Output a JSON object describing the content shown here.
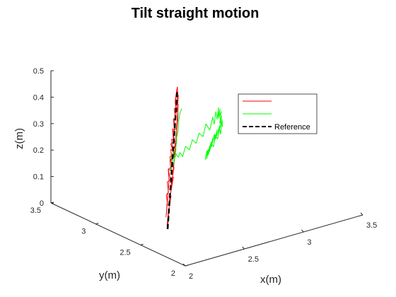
{
  "chart_data": {
    "type": "line",
    "projection": "3d",
    "title": "Tilt straight motion",
    "xlabel": "x(m)",
    "ylabel": "y(m)",
    "zlabel": "z(m)",
    "xlim": [
      2,
      3.5
    ],
    "ylim": [
      2,
      3.5
    ],
    "zlim": [
      0,
      0.5
    ],
    "x_ticks": [
      "2",
      "2.5",
      "3",
      "3.5"
    ],
    "y_ticks": [
      "2",
      "2.5",
      "3",
      "3.5"
    ],
    "z_ticks": [
      "0",
      "0.1",
      "0.2",
      "0.3",
      "0.4",
      "0.5"
    ],
    "grid": false,
    "legend_position": "top-right",
    "series": [
      {
        "name": "",
        "color": "#ff0000",
        "style": "solid",
        "x": [
          2.32,
          2.36,
          2.3,
          2.38,
          2.33,
          2.41,
          2.35,
          2.43,
          2.38,
          2.46,
          2.4,
          2.48,
          2.43,
          2.5,
          2.45,
          2.52,
          2.47,
          2.54,
          2.49,
          2.56,
          2.51,
          2.57,
          2.53,
          2.58,
          2.55,
          2.59,
          2.56,
          2.6,
          2.57,
          2.6,
          2.52,
          2.55,
          2.49,
          2.52,
          2.46,
          2.49,
          2.43,
          2.46,
          2.4,
          2.43,
          2.37,
          2.4,
          2.34,
          2.37,
          2.31,
          2.34,
          2.3,
          2.33,
          2.35,
          2.31,
          2.38,
          2.34,
          2.42,
          2.37,
          2.45,
          2.4,
          2.48,
          2.43,
          2.51,
          2.46,
          2.53,
          2.49,
          2.55,
          2.52,
          2.57,
          2.54,
          2.59
        ],
        "y": [
          2.62,
          2.66,
          2.6,
          2.68,
          2.63,
          2.7,
          2.65,
          2.72,
          2.67,
          2.74,
          2.69,
          2.76,
          2.71,
          2.78,
          2.73,
          2.79,
          2.75,
          2.81,
          2.77,
          2.82,
          2.78,
          2.84,
          2.8,
          2.85,
          2.81,
          2.86,
          2.83,
          2.87,
          2.84,
          2.88,
          2.8,
          2.83,
          2.77,
          2.8,
          2.74,
          2.77,
          2.71,
          2.74,
          2.68,
          2.71,
          2.65,
          2.68,
          2.62,
          2.65,
          2.6,
          2.63,
          2.61,
          2.64,
          2.66,
          2.62,
          2.69,
          2.65,
          2.72,
          2.68,
          2.74,
          2.7,
          2.76,
          2.73,
          2.79,
          2.75,
          2.81,
          2.77,
          2.83,
          2.79,
          2.85,
          2.82,
          2.87
        ],
        "z": [
          0.0,
          0.04,
          0.02,
          0.07,
          0.05,
          0.1,
          0.08,
          0.13,
          0.11,
          0.16,
          0.14,
          0.19,
          0.17,
          0.22,
          0.2,
          0.25,
          0.23,
          0.28,
          0.26,
          0.31,
          0.29,
          0.34,
          0.32,
          0.37,
          0.35,
          0.4,
          0.38,
          0.43,
          0.41,
          0.46,
          0.43,
          0.39,
          0.41,
          0.36,
          0.38,
          0.33,
          0.35,
          0.3,
          0.32,
          0.27,
          0.29,
          0.24,
          0.26,
          0.21,
          0.23,
          0.18,
          0.05,
          0.09,
          0.08,
          0.13,
          0.12,
          0.17,
          0.16,
          0.21,
          0.2,
          0.25,
          0.24,
          0.29,
          0.28,
          0.33,
          0.32,
          0.37,
          0.36,
          0.41,
          0.4,
          0.44,
          0.46
        ]
      },
      {
        "name": "",
        "color": "#00ff00",
        "style": "solid",
        "x": [
          2.5,
          2.47,
          2.45,
          2.44,
          2.46,
          2.43,
          2.44,
          2.42,
          2.4,
          2.41,
          2.38,
          2.39,
          2.36,
          2.37,
          2.34,
          2.36,
          2.38,
          2.35,
          2.37,
          2.36,
          2.39,
          2.41,
          2.44,
          2.47,
          2.5,
          2.54,
          2.58,
          2.62,
          2.66,
          2.7,
          2.74,
          2.78,
          2.82,
          2.86,
          2.88,
          2.91,
          2.92,
          2.94,
          2.93,
          2.96,
          2.94,
          2.97,
          2.95,
          2.98,
          2.96,
          2.97,
          2.93,
          2.95,
          2.9,
          2.92,
          2.88,
          2.89,
          2.85,
          2.86,
          2.82,
          2.84,
          2.8,
          2.82,
          2.78,
          2.8,
          2.77,
          2.79,
          2.76,
          2.78,
          2.8,
          2.83,
          2.86,
          2.88,
          2.91,
          2.93,
          2.95,
          2.97,
          2.98
        ],
        "y": [
          2.7,
          2.68,
          2.67,
          2.66,
          2.69,
          2.67,
          2.68,
          2.66,
          2.64,
          2.65,
          2.63,
          2.64,
          2.62,
          2.63,
          2.61,
          2.62,
          2.64,
          2.62,
          2.63,
          2.62,
          2.64,
          2.65,
          2.66,
          2.68,
          2.69,
          2.71,
          2.72,
          2.74,
          2.75,
          2.77,
          2.78,
          2.8,
          2.81,
          2.83,
          2.84,
          2.86,
          2.86,
          2.87,
          2.86,
          2.88,
          2.87,
          2.88,
          2.87,
          2.89,
          2.88,
          2.88,
          2.86,
          2.87,
          2.85,
          2.86,
          2.84,
          2.85,
          2.83,
          2.83,
          2.81,
          2.82,
          2.8,
          2.81,
          2.79,
          2.8,
          2.79,
          2.8,
          2.78,
          2.79,
          2.8,
          2.81,
          2.82,
          2.83,
          2.84,
          2.85,
          2.86,
          2.87,
          2.88
        ],
        "z": [
          0.42,
          0.41,
          0.38,
          0.36,
          0.34,
          0.32,
          0.3,
          0.29,
          0.27,
          0.26,
          0.25,
          0.24,
          0.23,
          0.24,
          0.22,
          0.25,
          0.27,
          0.26,
          0.28,
          0.27,
          0.26,
          0.27,
          0.25,
          0.26,
          0.24,
          0.27,
          0.25,
          0.28,
          0.26,
          0.29,
          0.27,
          0.31,
          0.28,
          0.32,
          0.29,
          0.33,
          0.3,
          0.34,
          0.31,
          0.33,
          0.3,
          0.32,
          0.28,
          0.3,
          0.26,
          0.28,
          0.24,
          0.27,
          0.23,
          0.26,
          0.22,
          0.25,
          0.21,
          0.24,
          0.2,
          0.23,
          0.19,
          0.22,
          0.18,
          0.21,
          0.19,
          0.2,
          0.18,
          0.21,
          0.2,
          0.23,
          0.21,
          0.25,
          0.23,
          0.27,
          0.24,
          0.29,
          0.26
        ]
      },
      {
        "name": "Reference",
        "color": "#000000",
        "style": "dashed",
        "x": [
          2.32,
          2.6
        ],
        "y": [
          2.62,
          2.88
        ],
        "z": [
          0.0,
          0.45
        ]
      }
    ]
  }
}
